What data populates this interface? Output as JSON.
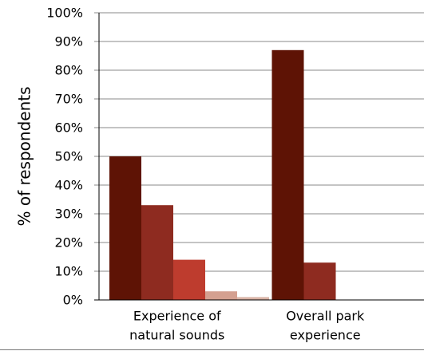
{
  "chart_data": {
    "type": "bar",
    "ylabel": "% of respondents",
    "ylim": [
      0,
      100
    ],
    "y_ticks": [
      "0%",
      "10%",
      "20%",
      "30%",
      "40%",
      "50%",
      "60%",
      "70%",
      "80%",
      "90%",
      "100%"
    ],
    "grid": true,
    "categories": [
      {
        "lines": [
          "Experience of",
          "natural sounds"
        ]
      },
      {
        "lines": [
          "Overall park",
          "experience"
        ]
      }
    ],
    "groups": [
      {
        "values": [
          50,
          33,
          14,
          3,
          1
        ],
        "colors": [
          "#5E1305",
          "#8E2B20",
          "#BE3C2E",
          "#D4A090",
          "#D9B3A6"
        ]
      },
      {
        "values": [
          87,
          13
        ],
        "colors": [
          "#5E1305",
          "#8E2B20"
        ]
      }
    ]
  }
}
